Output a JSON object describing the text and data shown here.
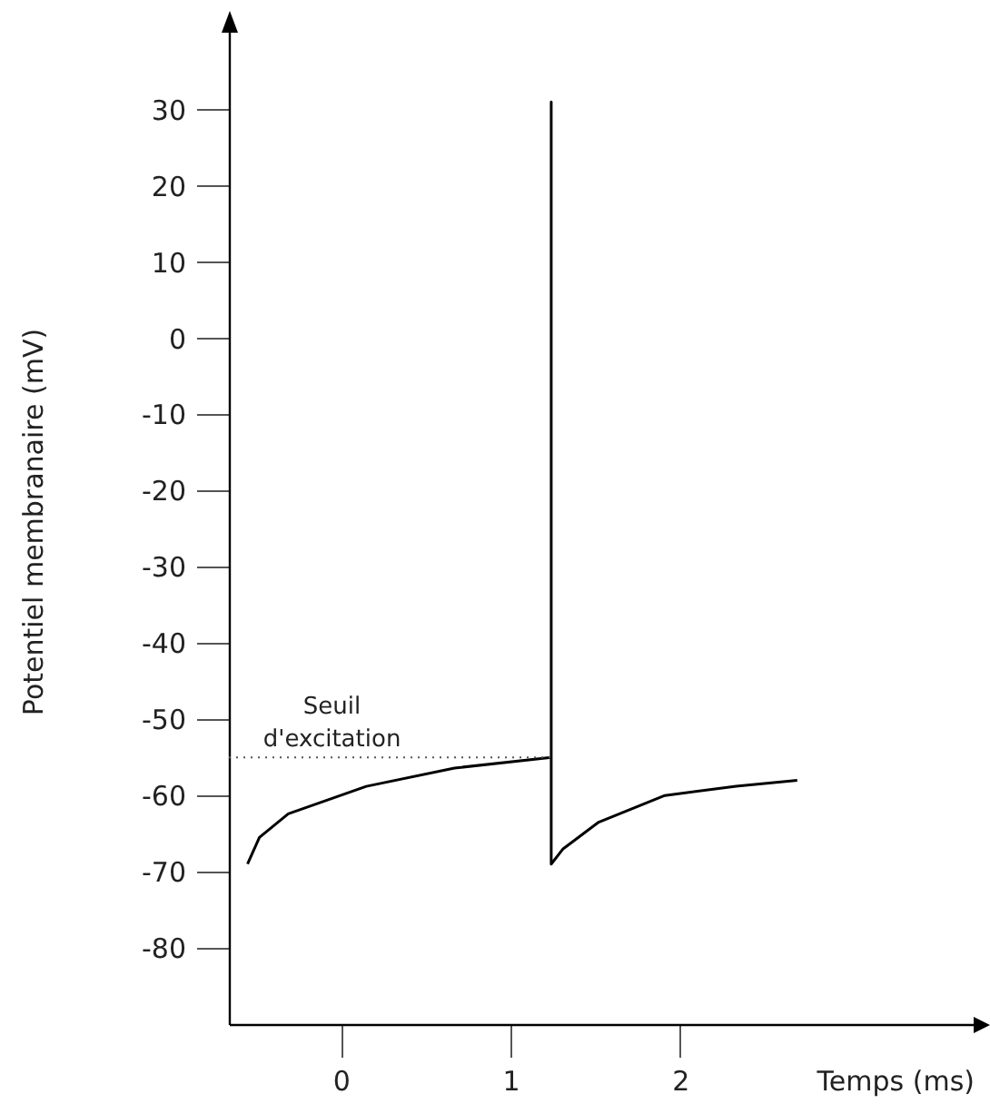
{
  "chart_data": {
    "type": "line",
    "xlabel": "Temps (ms)",
    "ylabel": "Potentiel membranaire (mV)",
    "xlim": [
      -0.66,
      3.73
    ],
    "ylim": [
      -90,
      42
    ],
    "xticks": [
      0,
      1,
      2
    ],
    "yticks": [
      -80,
      -70,
      -60,
      -50,
      -40,
      -30,
      -20,
      -10,
      0,
      10,
      20,
      30
    ],
    "grid": false,
    "marker": "none",
    "line_style": "solid",
    "series": [
      {
        "color": "#000000",
        "x": [
          -0.55,
          -0.48,
          -0.31,
          0.15,
          0.67,
          1.24,
          1.24,
          1.24,
          1.31,
          1.52,
          1.91,
          2.33,
          2.69
        ],
        "values": [
          -69,
          -65.5,
          -62.4,
          -58.8,
          -56.4,
          -55,
          31,
          -69,
          -67,
          -63.5,
          -60,
          -58.8,
          -58
        ]
      }
    ],
    "ref_lines": [
      {
        "axis": "y",
        "value": -55,
        "label": "Seuil d'excitation",
        "color": "#555555",
        "line_style": "dotted"
      }
    ]
  }
}
